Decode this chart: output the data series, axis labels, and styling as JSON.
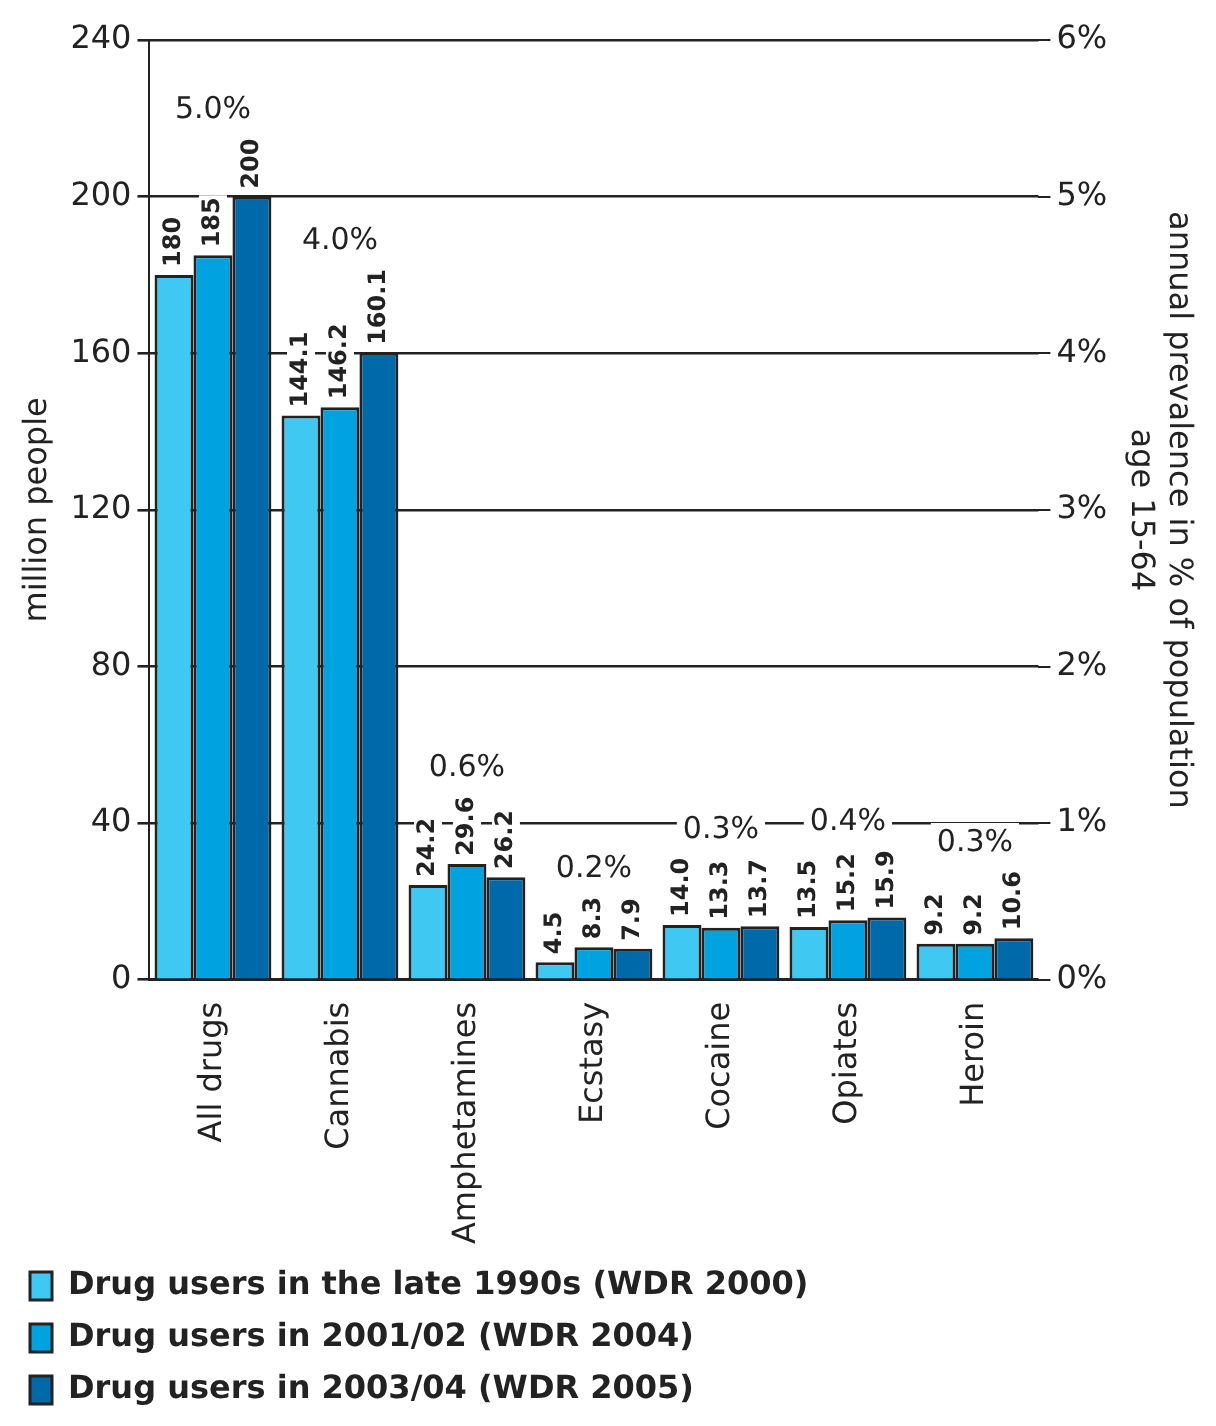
{
  "chart_data": {
    "type": "bar",
    "ylabel": "million people",
    "y2label": "annual prevalence in % of population\nage 15-64",
    "categories": [
      "All drugs",
      "Cannabis",
      "Amphetamines",
      "Ecstasy",
      "Cocaine",
      "Opiates",
      "Heroin"
    ],
    "series": [
      {
        "name": "Drug users in the late 1990s (WDR 2000)",
        "color": "#3ec8f2",
        "values": [
          180,
          144.1,
          24.2,
          4.5,
          14.0,
          13.5,
          9.2
        ],
        "value_labels": [
          "180",
          "144.1",
          "24.2",
          "4.5",
          "14.0",
          "13.5",
          "9.2"
        ]
      },
      {
        "name": "Drug users in 2001/02 (WDR 2004)",
        "color": "#00a3e0",
        "values": [
          185,
          146.2,
          29.6,
          8.3,
          13.3,
          15.2,
          9.2
        ],
        "value_labels": [
          "185",
          "146.2",
          "29.6",
          "8.3",
          "13.3",
          "15.2",
          "9.2"
        ]
      },
      {
        "name": "Drug users in 2003/04 (WDR 2005)",
        "color": "#0069aa",
        "values": [
          200,
          160.1,
          26.2,
          7.9,
          13.7,
          15.9,
          10.6
        ],
        "value_labels": [
          "200",
          "160.1",
          "26.2",
          "7.9",
          "13.7",
          "15.9",
          "10.6"
        ]
      }
    ],
    "ylim": [
      0,
      240
    ],
    "yticks": [
      0,
      40,
      80,
      120,
      160,
      200,
      240
    ],
    "y2lim": [
      0,
      6
    ],
    "y2ticks": [
      {
        "value": 0,
        "label": "0%"
      },
      {
        "value": 1,
        "label": "1%"
      },
      {
        "value": 2,
        "label": "2%"
      },
      {
        "value": 3,
        "label": "3%"
      },
      {
        "value": 4,
        "label": "4%"
      },
      {
        "value": 5,
        "label": "5%"
      },
      {
        "value": 6,
        "label": "6%"
      }
    ],
    "annotations": [
      "5.0%",
      "4.0%",
      "0.6%",
      "0.2%",
      "0.3%",
      "0.4%",
      "0.3%"
    ],
    "grid": "y",
    "legend": "bottom"
  }
}
